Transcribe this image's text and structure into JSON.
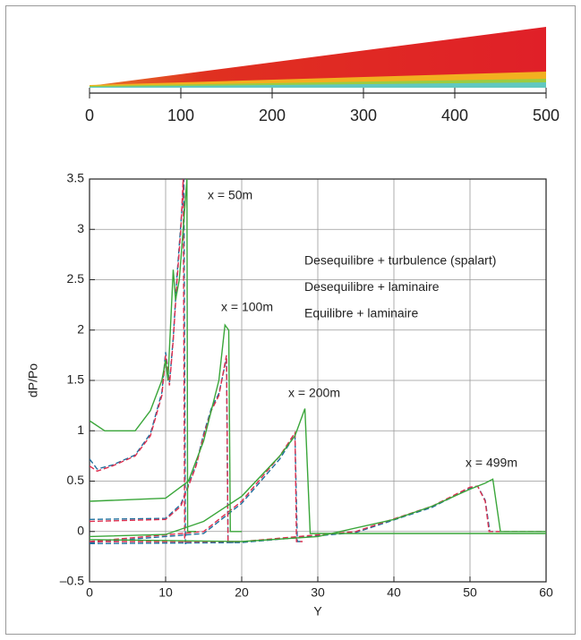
{
  "chart_data": [
    {
      "type": "field",
      "xlim": [
        0,
        500
      ],
      "xticks": [
        0,
        100,
        200,
        300,
        400,
        500
      ]
    },
    {
      "type": "line",
      "x_label": "Y",
      "y_label": "dP/Po",
      "xlim": [
        0,
        60
      ],
      "xticks": [
        0,
        10,
        20,
        30,
        40,
        50,
        60
      ],
      "ylim": [
        -0.5,
        3.5
      ],
      "yticks": [
        {
          "value": -0.5,
          "label": "–0.5"
        },
        0,
        0.5,
        1,
        1.5,
        2,
        2.5,
        3,
        3.5
      ],
      "grid": true,
      "annotations": [
        "x = 50m",
        "x = 100m",
        "x = 200m",
        "x = 499m"
      ],
      "series": [
        {
          "name": "Desequilibre + turbulence (spalart)",
          "color": "#1f6e9c",
          "dashed": true,
          "x": [
            0,
            1,
            3,
            6,
            8,
            9.5,
            10,
            10.5,
            11,
            11.5,
            12,
            12.4,
            12.6,
            13,
            null,
            0,
            10,
            12,
            14,
            15,
            16,
            17,
            18,
            18.2,
            19,
            null,
            0,
            15,
            20,
            25,
            27,
            27.3,
            28,
            null,
            0,
            20,
            35,
            45,
            50,
            51,
            52,
            52.6,
            60
          ],
          "values": [
            0.72,
            0.62,
            0.66,
            0.76,
            0.97,
            1.38,
            1.78,
            1.48,
            1.92,
            2.55,
            3.05,
            3.5,
            -0.12,
            -0.12,
            null,
            0.12,
            0.13,
            0.27,
            0.66,
            0.97,
            1.22,
            1.37,
            1.72,
            -0.11,
            -0.11,
            null,
            -0.11,
            -0.02,
            0.28,
            0.72,
            0.96,
            -0.1,
            -0.1,
            null,
            -0.12,
            -0.11,
            -0.01,
            0.24,
            0.43,
            0.45,
            0.31,
            0,
            0
          ]
        },
        {
          "name": "Desequilibre + laminaire",
          "color": "#dd2f4f",
          "dashed": true,
          "x": [
            0,
            1,
            3,
            6,
            8,
            9.5,
            10,
            10.5,
            11,
            11.5,
            12,
            12.3,
            12.5,
            13,
            null,
            0,
            10,
            12,
            14,
            15,
            16,
            17,
            18,
            18.2,
            19,
            null,
            0,
            15,
            20,
            25,
            27,
            27.2,
            28,
            null,
            0,
            20,
            35,
            45,
            50,
            51,
            52,
            52.5,
            60
          ],
          "values": [
            0.65,
            0.6,
            0.65,
            0.75,
            0.95,
            1.35,
            1.75,
            1.45,
            1.9,
            2.5,
            3,
            3.5,
            -0.1,
            -0.1,
            null,
            0.1,
            0.12,
            0.25,
            0.65,
            0.95,
            1.2,
            1.35,
            1.75,
            -0.1,
            -0.1,
            null,
            -0.1,
            0,
            0.3,
            0.75,
            0.98,
            -0.1,
            -0.1,
            null,
            -0.1,
            -0.1,
            0,
            0.25,
            0.44,
            0.45,
            0.3,
            0,
            0
          ]
        },
        {
          "name": "Equilibre + laminaire",
          "color": "#3aa63a",
          "dashed": false,
          "x": [
            0,
            2,
            6,
            8,
            9.5,
            10,
            10.3,
            11,
            11.3,
            11.8,
            12.3,
            12.8,
            12.9,
            14,
            null,
            0,
            10,
            13,
            15,
            16,
            17,
            17.8,
            18.3,
            18.5,
            20,
            null,
            0,
            10,
            15,
            20,
            25,
            27,
            28.3,
            29,
            60,
            null,
            0,
            20,
            30,
            40,
            45,
            50,
            52,
            53,
            54,
            60
          ],
          "values": [
            1.1,
            1,
            1,
            1.2,
            1.5,
            1.7,
            1.5,
            2.6,
            2.3,
            2.5,
            3,
            3.5,
            0,
            0,
            null,
            0.3,
            0.33,
            0.5,
            0.9,
            1.2,
            1.5,
            2.05,
            2,
            0,
            0,
            null,
            -0.05,
            -0.03,
            0.1,
            0.35,
            0.75,
            0.95,
            1.22,
            -0.02,
            -0.02,
            null,
            -0.08,
            -0.1,
            -0.05,
            0.12,
            0.25,
            0.42,
            0.48,
            0.52,
            0,
            0
          ]
        }
      ]
    }
  ]
}
